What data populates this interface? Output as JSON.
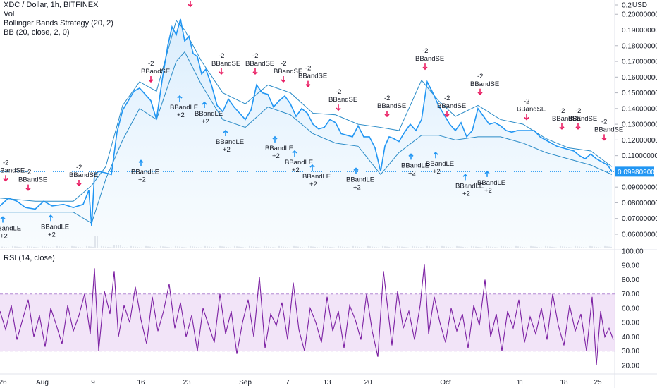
{
  "header": {
    "symbol_line": "XDC / Dollar, 1h, BITFINEX",
    "vol_label": "Vol",
    "strategy_label": "Bollinger Bands Strategy (20, 2)",
    "bb_label": "BB (20, close, 2, 0)",
    "currency": "USD"
  },
  "rsi_label": "RSI (14, close)",
  "current_price": "0.09980900",
  "colors": {
    "price": "#2196f3",
    "bands": "#2a8bc7",
    "fill": "#e3f2fd",
    "rsi": "#7b1fa2",
    "rsi_band": "#ecd9f5",
    "entry_arrow": "#2196f3",
    "exit_arrow": "#e91e63"
  },
  "chart_data": [
    {
      "type": "line",
      "title": "XDC / Dollar, 1h, BITFINEX",
      "ylim": [
        0.055,
        0.21
      ],
      "y_ticks": [
        "0.2",
        "0.20000000",
        "0.19000000",
        "0.18000000",
        "0.17000000",
        "0.16000000",
        "0.15000000",
        "0.14000000",
        "0.13000000",
        "0.12000000",
        "0.11000000",
        "0.09000000",
        "0.08000000",
        "0.07000000",
        "0.06000000"
      ],
      "x_ticks": [
        "26",
        "Aug",
        "9",
        "16",
        "23",
        "Sep",
        "7",
        "13",
        "20",
        "Oct",
        "11",
        "18",
        "25"
      ],
      "series": [
        {
          "name": "Price",
          "x": [
            0,
            12,
            24,
            36,
            50,
            62,
            74,
            90,
            104,
            118,
            126,
            130,
            134,
            140,
            150,
            158,
            166,
            174,
            182,
            190,
            198,
            206,
            214,
            222,
            230,
            238,
            244,
            250,
            256,
            262,
            268,
            274,
            280,
            286,
            292,
            300,
            308,
            316,
            324,
            332,
            340,
            348,
            356,
            364,
            372,
            380,
            388,
            396,
            404,
            412,
            420,
            428,
            436,
            444,
            452,
            460,
            468,
            476,
            484,
            492,
            500,
            508,
            516,
            524,
            532,
            540,
            546,
            552,
            558,
            566,
            574,
            582,
            590,
            598,
            606,
            614,
            622,
            630,
            638,
            646,
            654,
            662,
            670,
            678,
            686,
            694,
            702,
            710,
            718,
            726,
            734,
            742,
            750,
            758,
            766,
            774,
            782,
            790,
            798,
            806,
            814,
            822,
            830,
            838,
            846,
            854,
            862,
            868
          ],
          "y": [
            0.078,
            0.083,
            0.081,
            0.077,
            0.076,
            0.081,
            0.078,
            0.079,
            0.077,
            0.079,
            0.088,
            0.065,
            0.098,
            0.1,
            0.099,
            0.098,
            0.125,
            0.139,
            0.145,
            0.151,
            0.153,
            0.149,
            0.145,
            0.133,
            0.158,
            0.18,
            0.192,
            0.187,
            0.197,
            0.183,
            0.186,
            0.175,
            0.173,
            0.162,
            0.165,
            0.155,
            0.142,
            0.138,
            0.146,
            0.141,
            0.137,
            0.133,
            0.139,
            0.155,
            0.15,
            0.149,
            0.141,
            0.145,
            0.148,
            0.143,
            0.135,
            0.14,
            0.137,
            0.13,
            0.127,
            0.128,
            0.133,
            0.131,
            0.124,
            0.123,
            0.122,
            0.129,
            0.122,
            0.122,
            0.115,
            0.1,
            0.116,
            0.122,
            0.121,
            0.119,
            0.125,
            0.13,
            0.126,
            0.133,
            0.157,
            0.15,
            0.142,
            0.136,
            0.13,
            0.126,
            0.131,
            0.122,
            0.126,
            0.14,
            0.135,
            0.13,
            0.131,
            0.129,
            0.126,
            0.125,
            0.126,
            0.126,
            0.126,
            0.126,
            0.122,
            0.12,
            0.118,
            0.116,
            0.115,
            0.114,
            0.113,
            0.11,
            0.108,
            0.111,
            0.108,
            0.106,
            0.104,
            0.1
          ]
        },
        {
          "name": "BB Upper",
          "x": [
            0,
            50,
            104,
            130,
            150,
            174,
            198,
            222,
            250,
            262,
            286,
            316,
            348,
            380,
            412,
            444,
            476,
            508,
            540,
            566,
            598,
            622,
            646,
            678,
            710,
            742,
            774,
            806,
            838,
            868
          ],
          "y": [
            0.083,
            0.081,
            0.081,
            0.091,
            0.103,
            0.142,
            0.157,
            0.151,
            0.196,
            0.19,
            0.17,
            0.15,
            0.143,
            0.155,
            0.15,
            0.137,
            0.136,
            0.13,
            0.128,
            0.126,
            0.158,
            0.145,
            0.135,
            0.142,
            0.133,
            0.13,
            0.121,
            0.115,
            0.113,
            0.103
          ]
        },
        {
          "name": "BB Lower",
          "x": [
            0,
            50,
            104,
            130,
            150,
            174,
            198,
            222,
            250,
            262,
            286,
            316,
            348,
            380,
            412,
            444,
            476,
            508,
            540,
            566,
            598,
            622,
            646,
            678,
            710,
            742,
            774,
            806,
            838,
            868
          ],
          "y": [
            0.074,
            0.074,
            0.074,
            0.067,
            0.095,
            0.12,
            0.14,
            0.133,
            0.17,
            0.176,
            0.155,
            0.133,
            0.128,
            0.141,
            0.136,
            0.124,
            0.118,
            0.116,
            0.098,
            0.112,
            0.123,
            0.123,
            0.12,
            0.122,
            0.122,
            0.118,
            0.112,
            0.108,
            0.104,
            0.098
          ]
        }
      ]
    },
    {
      "type": "line",
      "title": "RSI (14, close)",
      "ylim": [
        15,
        100
      ],
      "y_ticks": [
        "100.00",
        "90.00",
        "80.00",
        "70.00",
        "60.00",
        "50.00",
        "40.00",
        "30.00",
        "20.00"
      ],
      "band": [
        30,
        70
      ],
      "series": [
        {
          "name": "RSI",
          "x": [
            0,
            8,
            16,
            24,
            32,
            40,
            48,
            56,
            64,
            72,
            80,
            88,
            96,
            104,
            112,
            120,
            128,
            134,
            140,
            148,
            156,
            162,
            168,
            176,
            184,
            192,
            200,
            208,
            216,
            224,
            232,
            240,
            248,
            256,
            264,
            272,
            280,
            288,
            296,
            304,
            312,
            320,
            328,
            336,
            344,
            352,
            360,
            368,
            376,
            384,
            392,
            400,
            408,
            416,
            424,
            432,
            440,
            448,
            456,
            464,
            472,
            480,
            488,
            496,
            504,
            512,
            520,
            528,
            536,
            544,
            550,
            556,
            564,
            572,
            580,
            588,
            596,
            602,
            608,
            616,
            624,
            632,
            640,
            648,
            656,
            664,
            672,
            680,
            688,
            696,
            704,
            712,
            720,
            728,
            736,
            744,
            752,
            760,
            768,
            776,
            784,
            792,
            800,
            808,
            816,
            824,
            832,
            840,
            846,
            852,
            858,
            864,
            870
          ],
          "y": [
            58,
            45,
            62,
            38,
            52,
            66,
            40,
            55,
            33,
            60,
            48,
            35,
            62,
            44,
            55,
            70,
            42,
            88,
            30,
            72,
            56,
            86,
            40,
            62,
            50,
            75,
            52,
            35,
            68,
            44,
            58,
            77,
            46,
            64,
            40,
            55,
            30,
            60,
            48,
            36,
            70,
            42,
            58,
            28,
            50,
            66,
            40,
            82,
            32,
            56,
            48,
            64,
            38,
            78,
            45,
            30,
            60,
            50,
            36,
            68,
            44,
            58,
            32,
            62,
            52,
            38,
            70,
            44,
            26,
            86,
            60,
            34,
            72,
            46,
            58,
            38,
            62,
            91,
            42,
            68,
            50,
            36,
            60,
            44,
            56,
            32,
            62,
            48,
            80,
            40,
            56,
            30,
            58,
            46,
            66,
            36,
            54,
            42,
            60,
            38,
            70,
            48,
            34,
            62,
            44,
            56,
            30,
            68,
            20,
            58,
            40,
            46,
            38
          ]
        }
      ]
    }
  ],
  "signals": [
    {
      "kind": "exit",
      "label": "BBandSE",
      "qty": "-2",
      "price": 0.094
    },
    {
      "kind": "exit",
      "label": "BBandSE",
      "qty": "-2",
      "price": 0.088
    },
    {
      "kind": "exit",
      "label": "BBandSE",
      "qty": "-2",
      "price": 0.091
    },
    {
      "kind": "exit",
      "label": "BBandSE",
      "qty": "-2",
      "price": 0.157
    },
    {
      "kind": "exit",
      "label": "BBandSE",
      "qty": "-2",
      "price": 0.205
    },
    {
      "kind": "exit",
      "label": "BBandSE",
      "qty": "-2",
      "price": 0.162
    },
    {
      "kind": "exit",
      "label": "BBandSE",
      "qty": "-2",
      "price": 0.162
    },
    {
      "kind": "exit",
      "label": "BBandSE",
      "qty": "-2",
      "price": 0.157
    },
    {
      "kind": "exit",
      "label": "BBandSE",
      "qty": "-2",
      "price": 0.154
    },
    {
      "kind": "exit",
      "label": "BBandSE",
      "qty": "-2",
      "price": 0.139
    },
    {
      "kind": "exit",
      "label": "BBandSE",
      "qty": "-2",
      "price": 0.135
    },
    {
      "kind": "exit",
      "label": "BBandSE",
      "qty": "-2",
      "price": 0.165
    },
    {
      "kind": "exit",
      "label": "BBandSE",
      "qty": "-2",
      "price": 0.135
    },
    {
      "kind": "exit",
      "label": "BBandSE",
      "qty": "-2",
      "price": 0.149
    },
    {
      "kind": "exit",
      "label": "BBandSE",
      "qty": "-2",
      "price": 0.133
    },
    {
      "kind": "exit",
      "label": "BBandSE",
      "qty": "-2",
      "price": 0.127
    },
    {
      "kind": "exit",
      "label": "BBandSE",
      "qty": "-2",
      "price": 0.127
    },
    {
      "kind": "exit",
      "label": "BBandSE",
      "qty": "-2",
      "price": 0.12
    },
    {
      "kind": "entry",
      "label": "BBandLE",
      "qty": "+2",
      "price": 0.071
    },
    {
      "kind": "entry",
      "label": "BBandLE",
      "qty": "+2",
      "price": 0.072
    },
    {
      "kind": "entry",
      "label": "BBandLE",
      "qty": "+2",
      "price": 0.107
    },
    {
      "kind": "entry",
      "label": "BBandLE",
      "qty": "+2",
      "price": 0.148
    },
    {
      "kind": "entry",
      "label": "BBandLE",
      "qty": "+2",
      "price": 0.144
    },
    {
      "kind": "entry",
      "label": "BBandLE",
      "qty": "+2",
      "price": 0.126
    },
    {
      "kind": "entry",
      "label": "BBandLE",
      "qty": "+2",
      "price": 0.122
    },
    {
      "kind": "entry",
      "label": "BBandLE",
      "qty": "+2",
      "price": 0.113
    },
    {
      "kind": "entry",
      "label": "BBandLE",
      "qty": "+2",
      "price": 0.104
    },
    {
      "kind": "entry",
      "label": "BBandLE",
      "qty": "+2",
      "price": 0.102
    },
    {
      "kind": "entry",
      "label": "BBandLE",
      "qty": "+2",
      "price": 0.111
    },
    {
      "kind": "entry",
      "label": "BBandLE",
      "qty": "+2",
      "price": 0.112
    },
    {
      "kind": "entry",
      "label": "BBandLE",
      "qty": "+2",
      "price": 0.098
    },
    {
      "kind": "entry",
      "label": "BBandLE",
      "qty": "+2",
      "price": 0.1
    }
  ]
}
